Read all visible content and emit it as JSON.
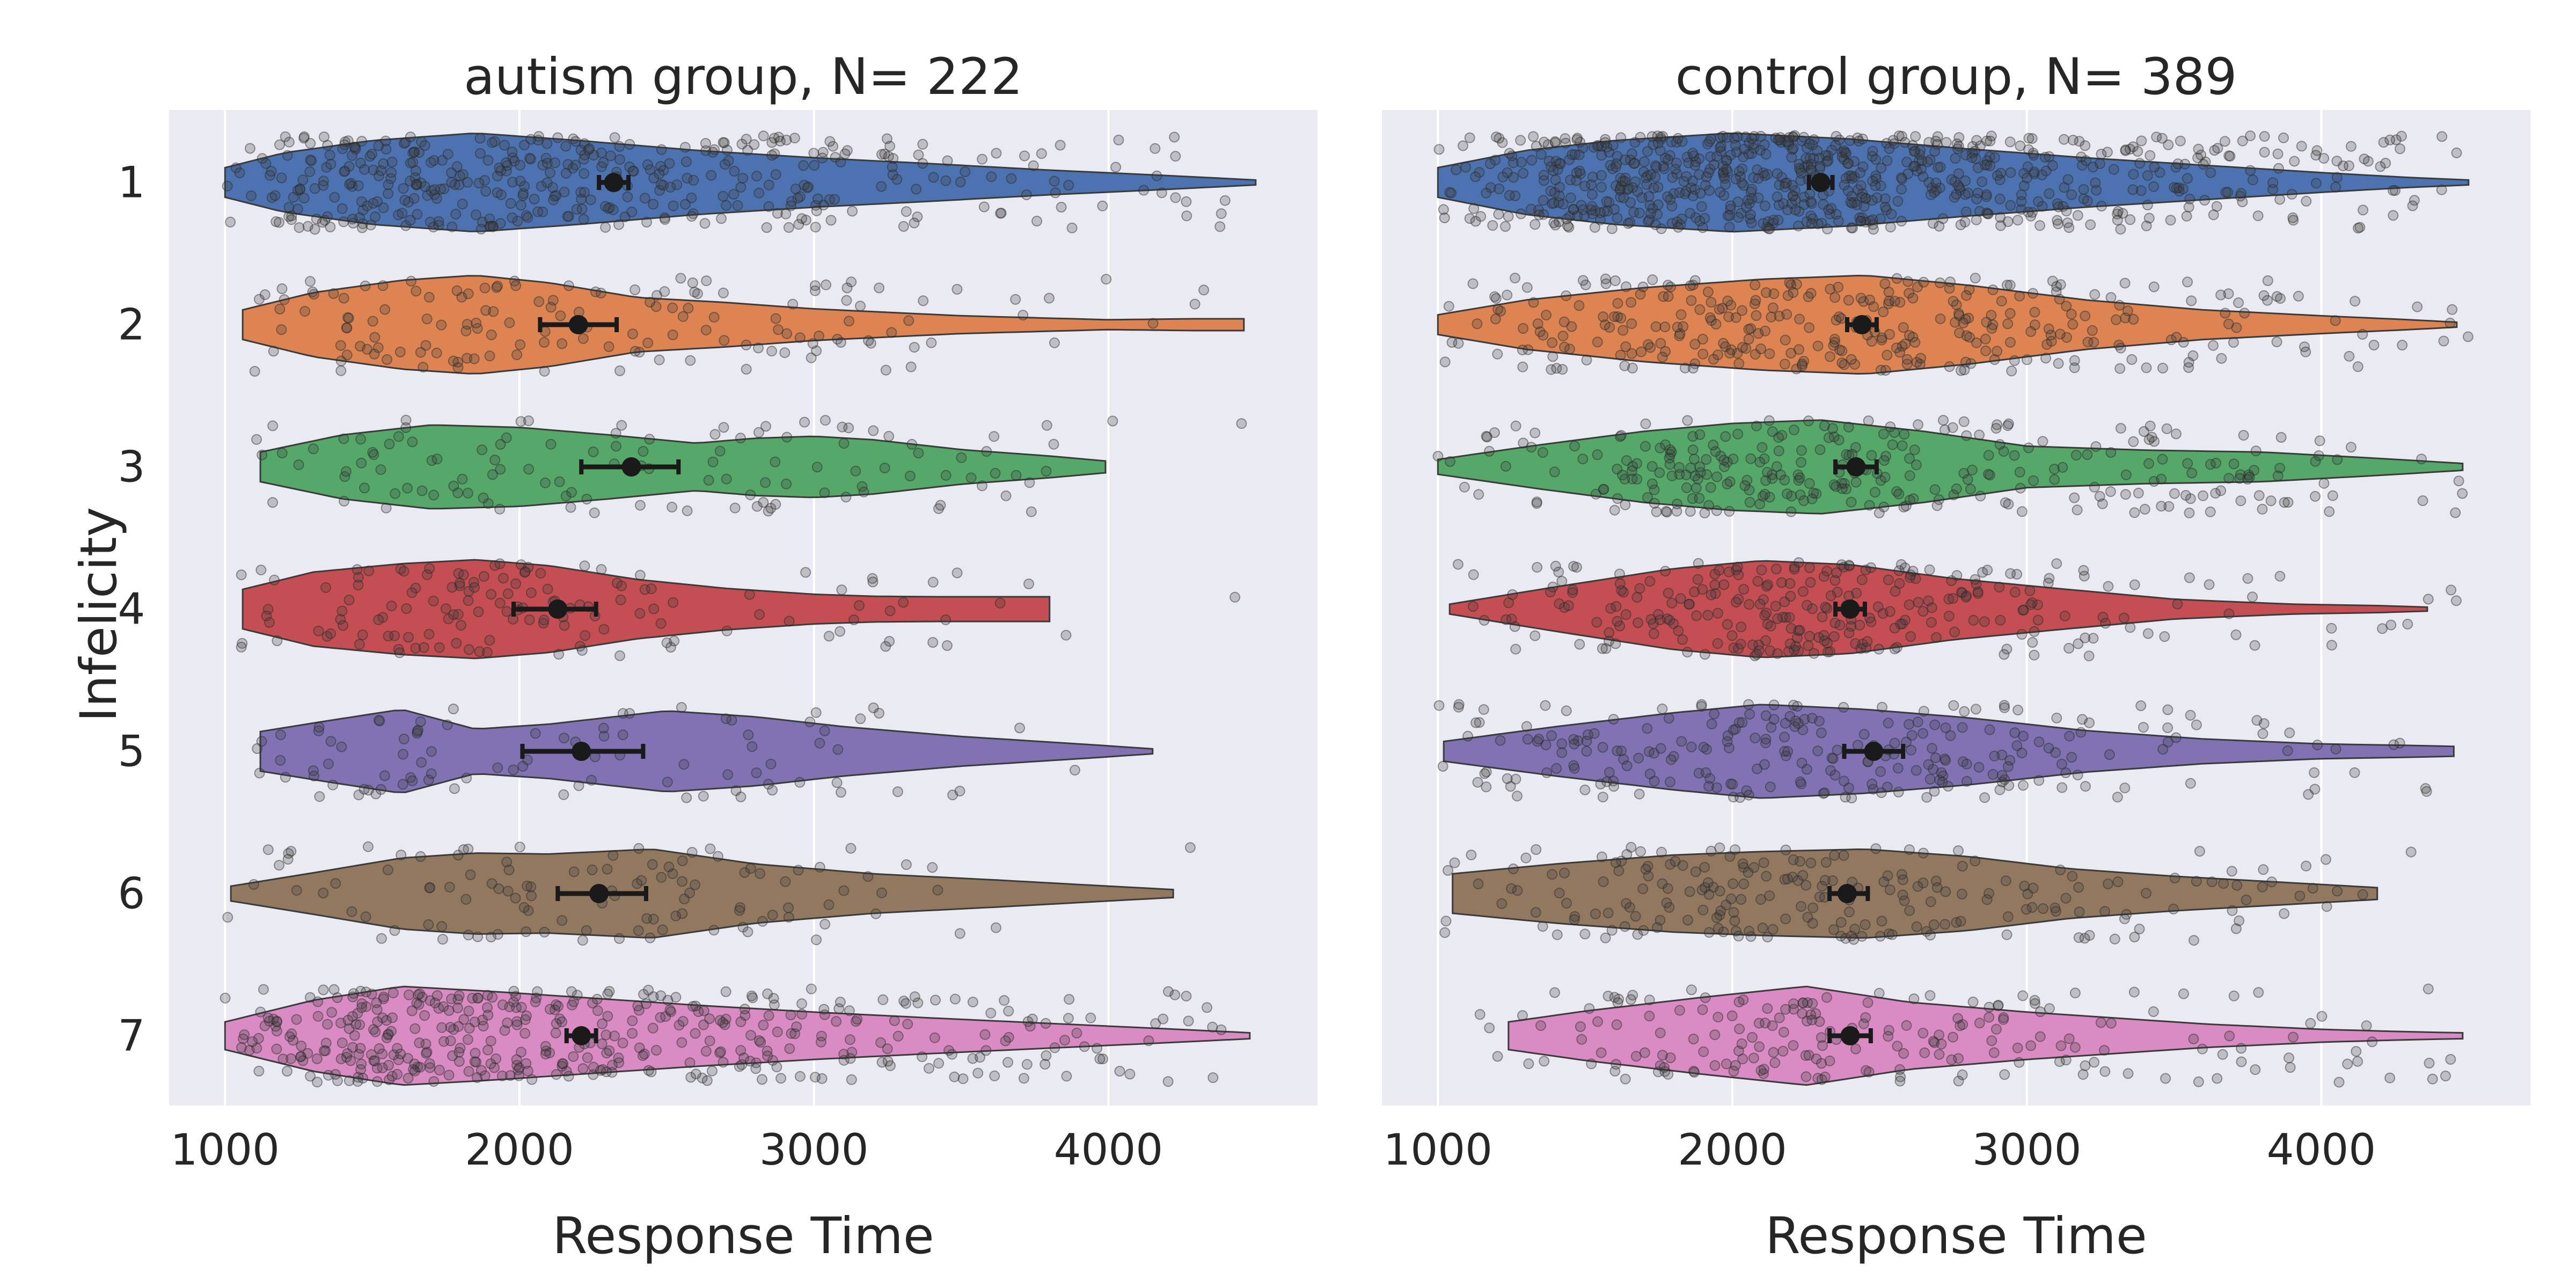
{
  "figure": {
    "ylabel": "Infelicity",
    "xlabel": "Response Time"
  },
  "chart_data": [
    {
      "type": "violin",
      "title": "autism group, N= 222",
      "xlabel": "Response Time",
      "ylabel": "Infelicity",
      "xlim": [
        810,
        4710
      ],
      "xticks": [
        1000,
        2000,
        3000,
        4000
      ],
      "categories": [
        "1",
        "2",
        "3",
        "4",
        "5",
        "6",
        "7"
      ],
      "grid": true,
      "series": [
        {
          "category": "1",
          "color": "#4c72b0",
          "range": [
            1000,
            4500
          ],
          "n_points": 420,
          "mean": 2320,
          "ci": [
            2270,
            2370
          ],
          "density": [
            [
              1000,
              0.3
            ],
            [
              1200,
              0.6
            ],
            [
              1500,
              0.85
            ],
            [
              1850,
              1.0
            ],
            [
              2200,
              0.85
            ],
            [
              2600,
              0.65
            ],
            [
              3000,
              0.5
            ],
            [
              3400,
              0.38
            ],
            [
              3800,
              0.25
            ],
            [
              4200,
              0.14
            ],
            [
              4500,
              0.05
            ]
          ]
        },
        {
          "category": "2",
          "color": "#dd8452",
          "range": [
            1060,
            4460
          ],
          "n_points": 150,
          "mean": 2200,
          "ci": [
            2070,
            2330
          ],
          "density": [
            [
              1060,
              0.3
            ],
            [
              1300,
              0.65
            ],
            [
              1600,
              0.9
            ],
            [
              1850,
              1.0
            ],
            [
              2100,
              0.85
            ],
            [
              2400,
              0.55
            ],
            [
              2700,
              0.45
            ],
            [
              3000,
              0.32
            ],
            [
              3500,
              0.18
            ],
            [
              4000,
              0.1
            ],
            [
              4300,
              0.12
            ],
            [
              4460,
              0.12
            ]
          ]
        },
        {
          "category": "3",
          "color": "#55a868",
          "range": [
            1120,
            3990
          ],
          "n_points": 120,
          "mean": 2380,
          "ci": [
            2210,
            2540
          ],
          "density": [
            [
              1120,
              0.3
            ],
            [
              1400,
              0.65
            ],
            [
              1700,
              0.85
            ],
            [
              2000,
              0.8
            ],
            [
              2300,
              0.65
            ],
            [
              2600,
              0.48
            ],
            [
              2800,
              0.58
            ],
            [
              3000,
              0.62
            ],
            [
              3200,
              0.55
            ],
            [
              3500,
              0.35
            ],
            [
              3800,
              0.22
            ],
            [
              3990,
              0.12
            ]
          ]
        },
        {
          "category": "4",
          "color": "#c44e52",
          "range": [
            1060,
            3800
          ],
          "n_points": 140,
          "mean": 2130,
          "ci": [
            1980,
            2260
          ],
          "density": [
            [
              1060,
              0.4
            ],
            [
              1300,
              0.75
            ],
            [
              1600,
              0.92
            ],
            [
              1850,
              1.0
            ],
            [
              2100,
              0.88
            ],
            [
              2400,
              0.6
            ],
            [
              2700,
              0.42
            ],
            [
              3000,
              0.3
            ],
            [
              3200,
              0.26
            ],
            [
              3400,
              0.25
            ],
            [
              3800,
              0.25
            ]
          ]
        },
        {
          "category": "5",
          "color": "#8172b3",
          "range": [
            1120,
            4150
          ],
          "n_points": 90,
          "mean": 2210,
          "ci": [
            2010,
            2420
          ],
          "density": [
            [
              1120,
              0.4
            ],
            [
              1350,
              0.62
            ],
            [
              1600,
              0.85
            ],
            [
              1850,
              0.45
            ],
            [
              2100,
              0.55
            ],
            [
              2500,
              0.82
            ],
            [
              2800,
              0.7
            ],
            [
              3100,
              0.5
            ],
            [
              3500,
              0.3
            ],
            [
              3900,
              0.15
            ],
            [
              4150,
              0.05
            ]
          ]
        },
        {
          "category": "6",
          "color": "#937860",
          "range": [
            1020,
            4220
          ],
          "n_points": 110,
          "mean": 2270,
          "ci": [
            2130,
            2430
          ],
          "density": [
            [
              1020,
              0.15
            ],
            [
              1300,
              0.42
            ],
            [
              1600,
              0.72
            ],
            [
              1850,
              0.82
            ],
            [
              2100,
              0.8
            ],
            [
              2450,
              0.9
            ],
            [
              2800,
              0.6
            ],
            [
              3200,
              0.4
            ],
            [
              3600,
              0.28
            ],
            [
              4000,
              0.15
            ],
            [
              4220,
              0.08
            ]
          ]
        },
        {
          "category": "7",
          "color": "#da8bc3",
          "range": [
            1000,
            4480
          ],
          "n_points": 430,
          "mean": 2210,
          "ci": [
            2160,
            2260
          ],
          "density": [
            [
              1000,
              0.28
            ],
            [
              1300,
              0.72
            ],
            [
              1600,
              1.0
            ],
            [
              1900,
              0.9
            ],
            [
              2200,
              0.78
            ],
            [
              2600,
              0.62
            ],
            [
              3000,
              0.48
            ],
            [
              3400,
              0.36
            ],
            [
              3800,
              0.25
            ],
            [
              4200,
              0.14
            ],
            [
              4480,
              0.06
            ]
          ]
        }
      ]
    },
    {
      "type": "violin",
      "title": "control group, N= 389",
      "xlabel": "Response Time",
      "ylabel": "",
      "xlim": [
        810,
        4710
      ],
      "xticks": [
        1000,
        2000,
        3000,
        4000
      ],
      "categories": [
        "1",
        "2",
        "3",
        "4",
        "5",
        "6",
        "7"
      ],
      "grid": true,
      "series": [
        {
          "category": "1",
          "color": "#4c72b0",
          "range": [
            1000,
            4500
          ],
          "n_points": 750,
          "mean": 2300,
          "ci": [
            2260,
            2340
          ],
          "density": [
            [
              1000,
              0.3
            ],
            [
              1300,
              0.65
            ],
            [
              1600,
              0.85
            ],
            [
              2000,
              1.0
            ],
            [
              2400,
              0.88
            ],
            [
              2800,
              0.68
            ],
            [
              3200,
              0.5
            ],
            [
              3600,
              0.35
            ],
            [
              4000,
              0.2
            ],
            [
              4300,
              0.1
            ],
            [
              4500,
              0.05
            ]
          ]
        },
        {
          "category": "2",
          "color": "#dd8452",
          "range": [
            1000,
            4460
          ],
          "n_points": 330,
          "mean": 2440,
          "ci": [
            2390,
            2490
          ],
          "density": [
            [
              1000,
              0.2
            ],
            [
              1300,
              0.5
            ],
            [
              1700,
              0.75
            ],
            [
              2100,
              0.92
            ],
            [
              2450,
              1.0
            ],
            [
              2800,
              0.8
            ],
            [
              3200,
              0.5
            ],
            [
              3600,
              0.3
            ],
            [
              4000,
              0.18
            ],
            [
              4300,
              0.1
            ],
            [
              4460,
              0.05
            ]
          ]
        },
        {
          "category": "3",
          "color": "#55a868",
          "range": [
            1000,
            4480
          ],
          "n_points": 300,
          "mean": 2420,
          "ci": [
            2350,
            2490
          ],
          "density": [
            [
              1000,
              0.15
            ],
            [
              1350,
              0.45
            ],
            [
              1700,
              0.72
            ],
            [
              2000,
              0.88
            ],
            [
              2300,
              0.95
            ],
            [
              2650,
              0.72
            ],
            [
              3000,
              0.42
            ],
            [
              3400,
              0.34
            ],
            [
              3800,
              0.3
            ],
            [
              4200,
              0.17
            ],
            [
              4480,
              0.07
            ]
          ]
        },
        {
          "category": "4",
          "color": "#c44e52",
          "range": [
            1040,
            4360
          ],
          "n_points": 280,
          "mean": 2400,
          "ci": [
            2350,
            2450
          ],
          "density": [
            [
              1040,
              0.1
            ],
            [
              1400,
              0.45
            ],
            [
              1800,
              0.82
            ],
            [
              2100,
              0.98
            ],
            [
              2400,
              0.9
            ],
            [
              2750,
              0.62
            ],
            [
              3100,
              0.42
            ],
            [
              3500,
              0.2
            ],
            [
              3900,
              0.1
            ],
            [
              4200,
              0.07
            ],
            [
              4360,
              0.04
            ]
          ]
        },
        {
          "category": "5",
          "color": "#8172b3",
          "range": [
            1020,
            4450
          ],
          "n_points": 250,
          "mean": 2480,
          "ci": [
            2380,
            2580
          ],
          "density": [
            [
              1020,
              0.2
            ],
            [
              1400,
              0.5
            ],
            [
              1800,
              0.78
            ],
            [
              2100,
              0.95
            ],
            [
              2450,
              0.85
            ],
            [
              2800,
              0.68
            ],
            [
              3200,
              0.42
            ],
            [
              3600,
              0.25
            ],
            [
              4000,
              0.15
            ],
            [
              4300,
              0.12
            ],
            [
              4450,
              0.1
            ]
          ]
        },
        {
          "category": "6",
          "color": "#937860",
          "range": [
            1050,
            4190
          ],
          "n_points": 220,
          "mean": 2390,
          "ci": [
            2330,
            2460
          ],
          "density": [
            [
              1050,
              0.4
            ],
            [
              1400,
              0.6
            ],
            [
              1800,
              0.78
            ],
            [
              2100,
              0.85
            ],
            [
              2450,
              0.9
            ],
            [
              2800,
              0.75
            ],
            [
              3150,
              0.5
            ],
            [
              3500,
              0.35
            ],
            [
              3800,
              0.25
            ],
            [
              4100,
              0.15
            ],
            [
              4190,
              0.12
            ]
          ]
        },
        {
          "category": "7",
          "color": "#da8bc3",
          "range": [
            1240,
            4480
          ],
          "n_points": 200,
          "mean": 2400,
          "ci": [
            2330,
            2470
          ],
          "density": [
            [
              1240,
              0.28
            ],
            [
              1500,
              0.5
            ],
            [
              1900,
              0.78
            ],
            [
              2250,
              1.0
            ],
            [
              2600,
              0.68
            ],
            [
              3000,
              0.48
            ],
            [
              3300,
              0.36
            ],
            [
              3600,
              0.24
            ],
            [
              4000,
              0.13
            ],
            [
              4300,
              0.08
            ],
            [
              4480,
              0.06
            ]
          ]
        }
      ]
    }
  ]
}
